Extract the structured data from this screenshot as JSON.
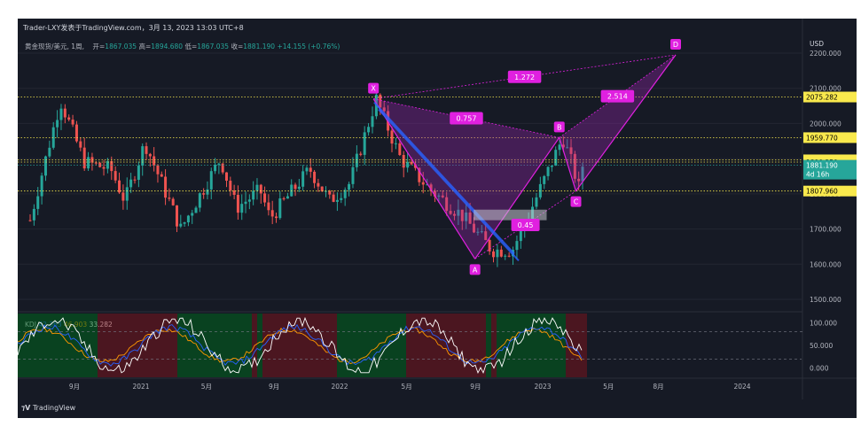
{
  "header": {
    "publish_title": "Trader-LXY发表于TradingView.com，3月 13, 2023 13:03 UTC+8",
    "symbol": "黄金现货/美元, 1周,",
    "open_label": "开=",
    "open": "1867.035",
    "high_label": "高=",
    "high": "1894.680",
    "low_label": "低=",
    "low": "1867.035",
    "close_label": "收=",
    "close": "1881.190",
    "change": "+14.155 (+0.76%)"
  },
  "price_axis": {
    "currency": "USD",
    "ticks": [
      "2200.000",
      "2100.000",
      "2000.000",
      "1900.000",
      "1800.000",
      "1700.000",
      "1600.000",
      "1500.000"
    ],
    "tick_values": [
      2200,
      2100,
      2000,
      1900,
      1800,
      1700,
      1600,
      1500
    ],
    "badges": [
      {
        "label": "2075.282",
        "value": 2075.282,
        "color": "#f9e94d"
      },
      {
        "label": "1959.770",
        "value": 1959.77,
        "color": "#f9e94d"
      },
      {
        "label": "1896.675",
        "value": 1896.675,
        "color": "#f9e94d"
      },
      {
        "label": "1890.250",
        "value": 1890.25,
        "color": "#f9e94d"
      },
      {
        "label": "1807.960",
        "value": 1807.96,
        "color": "#f9e94d"
      }
    ],
    "last_price": {
      "label": "1881.190",
      "countdown": "4d 16h",
      "value": 1881.19,
      "color": "#26a69a"
    }
  },
  "time_axis": {
    "ticks": [
      "9月",
      "2021",
      "5月",
      "9月",
      "2022",
      "5月",
      "9月",
      "2023",
      "5月",
      "8月",
      "2024"
    ]
  },
  "pattern": {
    "point_labels": [
      "X",
      "A",
      "B",
      "C",
      "D"
    ],
    "ratios": [
      "1.272",
      "0.757",
      "2.514",
      "0.45"
    ],
    "color": "#e020e0"
  },
  "kdj": {
    "legend_name": "KDJ",
    "k": "42.363",
    "d": "46.903",
    "j": "33.282",
    "ticks": [
      "100.000",
      "50.000",
      "0.000"
    ],
    "tick_values": [
      100,
      50,
      0
    ],
    "colors": {
      "k": "#2962ff",
      "d": "#ff9800",
      "j": "#ffffff"
    }
  },
  "brand": "TradingView",
  "chart_data": [
    {
      "type": "candlestick",
      "title": "黄金现货/美元, 1周",
      "ylabel": "USD",
      "ylim": [
        1470,
        2220
      ],
      "x_range": [
        "2020-06",
        "2024-03"
      ],
      "visible_range_note": "weekly candles approx. Jun 2020 - Mar 2023",
      "xticks": [
        "9月",
        "2021",
        "5月",
        "9月",
        "2022",
        "5月",
        "9月",
        "2023",
        "5月",
        "8月",
        "2024"
      ],
      "key_points": [
        {
          "label": "X",
          "date": "2022-03",
          "price": 2070
        },
        {
          "label": "A",
          "date": "2022-09",
          "price": 1615
        },
        {
          "label": "B",
          "date": "2023-02",
          "price": 1960
        },
        {
          "label": "C",
          "date": "2023-03",
          "price": 1808
        },
        {
          "label": "D",
          "date": "2023-09",
          "price": 2195
        }
      ],
      "horizontal_levels": [
        2075.282,
        1959.77,
        1896.675,
        1890.25,
        1807.96
      ],
      "last_close": 1881.19
    },
    {
      "type": "line",
      "title": "KDJ",
      "series": [
        {
          "name": "K",
          "last": 42.363
        },
        {
          "name": "D",
          "last": 46.903
        },
        {
          "name": "J",
          "last": 33.282
        }
      ],
      "ylim": [
        -20,
        120
      ]
    }
  ]
}
